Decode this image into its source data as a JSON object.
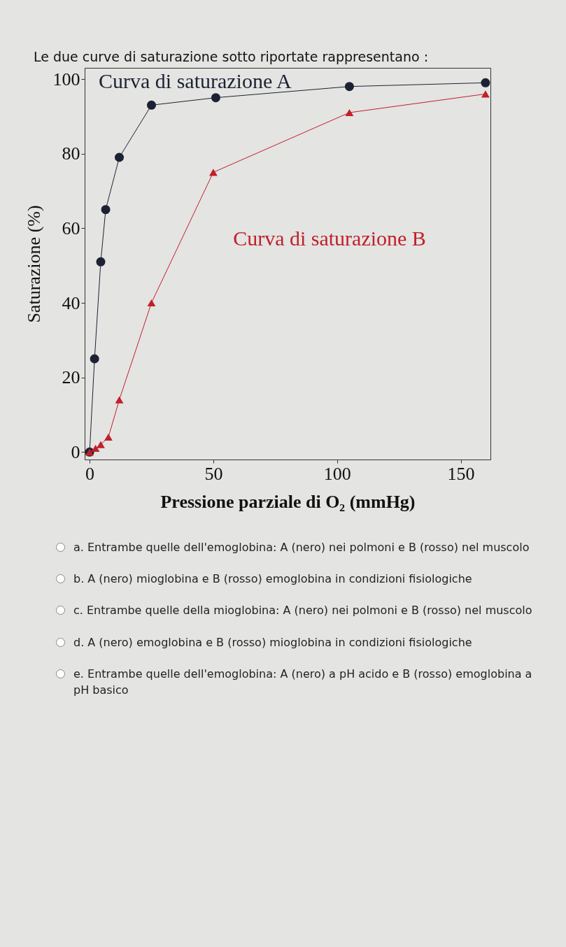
{
  "chart_data": {
    "type": "line",
    "title": "Le due curve di saturazione sotto riportate rappresentano :",
    "xlabel": "Pressione parziale di O₂ (mmHg)",
    "ylabel": "Saturazione (%)",
    "series": [
      {
        "name": "Curva di saturazione A",
        "color": "#1c2233",
        "marker": "circle",
        "x": [
          0,
          2,
          4.5,
          6.5,
          12,
          25,
          51,
          105,
          160
        ],
        "values": [
          0,
          25,
          51,
          65,
          79,
          93,
          95,
          98,
          99
        ]
      },
      {
        "name": "Curva di saturazione B",
        "color": "#c0202a",
        "marker": "triangle",
        "x": [
          0,
          2.4,
          4.5,
          7.6,
          12,
          25,
          50,
          105,
          160
        ],
        "values": [
          0,
          1,
          2,
          4,
          14,
          40,
          75,
          91,
          96
        ]
      }
    ],
    "xlim": [
      -2,
      162
    ],
    "xticks": [
      0,
      50,
      100,
      150
    ],
    "ylim": [
      -2,
      103
    ],
    "yticks": [
      0,
      20,
      40,
      60,
      80,
      100
    ],
    "grid": false,
    "annotations": [
      "a. Entrambe quelle dell'emoglobina: A (nero) nei polmoni e B (rosso) nel muscolo",
      "b. A (nero) mioglobina e B (rosso) emoglobina in condizioni fisiologiche",
      "c. Entrambe quelle della mioglobina: A (nero) nei polmoni e B (rosso) nel muscolo",
      "d. A (nero) emoglobina e B (rosso) mioglobina in condizioni fisiologiche",
      "e. Entrambe quelle dell'emoglobina: A (nero) a pH acido e B (rosso) emoglobina a pH basico"
    ]
  }
}
